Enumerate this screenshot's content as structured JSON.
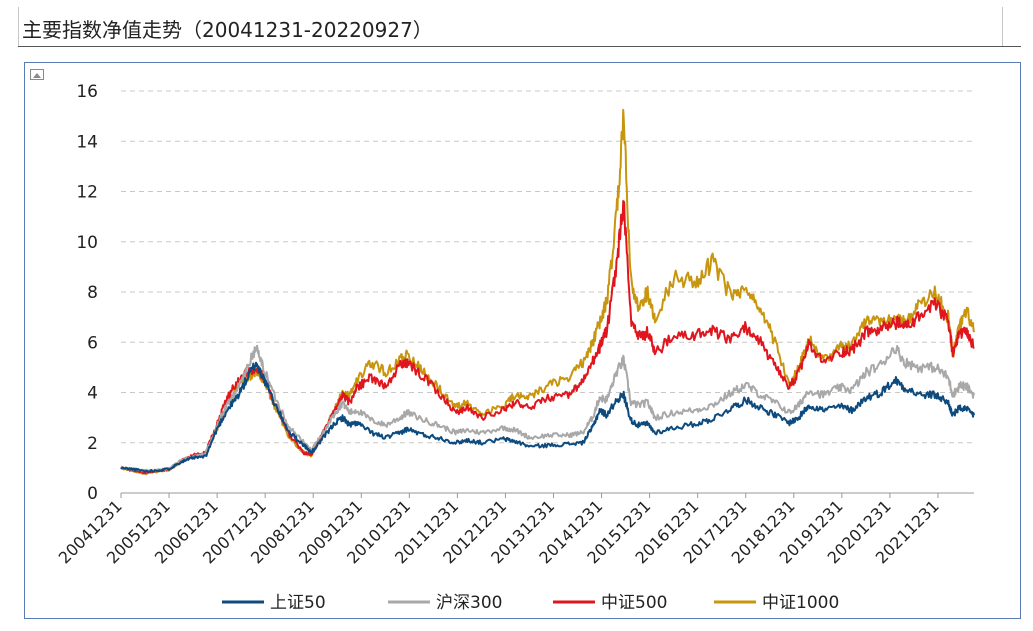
{
  "header": {
    "title": "主要指数净值走势（20041231-20220927）"
  },
  "chart_data": {
    "type": "line",
    "title": "主要指数净值走势（20041231-20220927）",
    "xlabel": "",
    "ylabel": "",
    "ylim": [
      0,
      16
    ],
    "yticks": [
      "0",
      "2",
      "4",
      "6",
      "8",
      "10",
      "12",
      "14",
      "16"
    ],
    "x_tick_labels": [
      "20041231",
      "20051231",
      "20061231",
      "20071231",
      "20081231",
      "20091231",
      "20101231",
      "20111231",
      "20121231",
      "20131231",
      "20141231",
      "20151231",
      "20161231",
      "20171231",
      "20181231",
      "20191231",
      "20201231",
      "20211231"
    ],
    "grid": "horizontal dashed",
    "legend_position": "bottom",
    "colors": {
      "上证50": "#0d4a7e",
      "沪深300": "#a8a8a8",
      "中证500": "#e0161f",
      "中证1000": "#c8960e"
    },
    "series": [
      {
        "name": "上证50",
        "x": [
          2004.99,
          2005.25,
          2005.5,
          2005.75,
          2006.0,
          2006.25,
          2006.5,
          2006.75,
          2007.0,
          2007.2,
          2007.4,
          2007.6,
          2007.8,
          2007.95,
          2008.2,
          2008.5,
          2008.8,
          2008.95,
          2009.2,
          2009.45,
          2009.6,
          2009.75,
          2009.9,
          2010.2,
          2010.5,
          2010.8,
          2010.95,
          2011.3,
          2011.6,
          2011.95,
          2012.2,
          2012.5,
          2012.95,
          2013.2,
          2013.5,
          2013.9,
          2014.3,
          2014.6,
          2014.8,
          2014.95,
          2015.1,
          2015.3,
          2015.45,
          2015.6,
          2015.75,
          2015.95,
          2016.1,
          2016.5,
          2016.95,
          2017.3,
          2017.7,
          2018.0,
          2018.3,
          2018.6,
          2018.9,
          2019.1,
          2019.3,
          2019.6,
          2019.95,
          2020.2,
          2020.5,
          2020.8,
          2021.1,
          2021.3,
          2021.6,
          2021.95,
          2022.2,
          2022.3,
          2022.45,
          2022.6,
          2022.74
        ],
        "values": [
          1.0,
          0.95,
          0.87,
          0.9,
          0.97,
          1.25,
          1.4,
          1.45,
          2.6,
          3.3,
          3.8,
          4.5,
          5.2,
          4.6,
          3.5,
          2.4,
          1.9,
          1.6,
          2.2,
          2.8,
          3.0,
          2.7,
          2.8,
          2.4,
          2.2,
          2.4,
          2.55,
          2.3,
          2.2,
          2.0,
          2.1,
          2.0,
          2.15,
          2.05,
          1.85,
          1.9,
          1.95,
          2.0,
          2.6,
          3.3,
          3.1,
          3.7,
          3.9,
          2.9,
          2.7,
          2.75,
          2.4,
          2.6,
          2.75,
          2.95,
          3.4,
          3.7,
          3.4,
          3.1,
          2.8,
          3.0,
          3.5,
          3.3,
          3.45,
          3.3,
          3.8,
          4.0,
          4.5,
          4.2,
          3.9,
          3.9,
          3.6,
          3.1,
          3.4,
          3.3,
          3.1
        ]
      },
      {
        "name": "沪深300",
        "x": [
          2004.99,
          2005.25,
          2005.5,
          2005.75,
          2006.0,
          2006.25,
          2006.5,
          2006.75,
          2007.0,
          2007.2,
          2007.4,
          2007.6,
          2007.8,
          2007.95,
          2008.2,
          2008.5,
          2008.8,
          2008.95,
          2009.2,
          2009.45,
          2009.6,
          2009.75,
          2009.9,
          2010.2,
          2010.5,
          2010.8,
          2010.95,
          2011.3,
          2011.6,
          2011.95,
          2012.2,
          2012.5,
          2012.95,
          2013.2,
          2013.5,
          2013.9,
          2014.3,
          2014.6,
          2014.8,
          2014.95,
          2015.1,
          2015.3,
          2015.45,
          2015.6,
          2015.75,
          2015.95,
          2016.1,
          2016.5,
          2016.95,
          2017.3,
          2017.7,
          2018.0,
          2018.3,
          2018.6,
          2018.9,
          2019.1,
          2019.3,
          2019.6,
          2019.95,
          2020.2,
          2020.5,
          2020.8,
          2021.1,
          2021.3,
          2021.6,
          2021.95,
          2022.2,
          2022.3,
          2022.45,
          2022.6,
          2022.74
        ],
        "values": [
          1.0,
          0.95,
          0.88,
          0.9,
          0.98,
          1.3,
          1.45,
          1.55,
          2.7,
          3.5,
          4.1,
          4.9,
          5.8,
          5.0,
          3.8,
          2.6,
          2.0,
          1.7,
          2.4,
          3.2,
          3.6,
          3.2,
          3.3,
          2.9,
          2.7,
          3.0,
          3.2,
          2.9,
          2.7,
          2.4,
          2.5,
          2.4,
          2.6,
          2.5,
          2.2,
          2.3,
          2.3,
          2.4,
          3.0,
          3.8,
          3.7,
          4.8,
          5.3,
          3.6,
          3.5,
          3.6,
          3.0,
          3.2,
          3.3,
          3.5,
          4.0,
          4.3,
          3.9,
          3.6,
          3.2,
          3.5,
          4.1,
          3.9,
          4.2,
          4.1,
          4.8,
          5.1,
          5.8,
          5.2,
          5.0,
          5.0,
          4.6,
          3.9,
          4.3,
          4.2,
          3.9
        ]
      },
      {
        "name": "中证500",
        "x": [
          2004.99,
          2005.25,
          2005.5,
          2005.75,
          2006.0,
          2006.25,
          2006.5,
          2006.75,
          2007.0,
          2007.2,
          2007.4,
          2007.6,
          2007.8,
          2007.95,
          2008.2,
          2008.5,
          2008.8,
          2008.95,
          2009.2,
          2009.45,
          2009.6,
          2009.75,
          2009.9,
          2010.2,
          2010.5,
          2010.8,
          2010.95,
          2011.3,
          2011.6,
          2011.95,
          2012.2,
          2012.5,
          2012.95,
          2013.2,
          2013.5,
          2013.9,
          2014.3,
          2014.6,
          2014.8,
          2014.95,
          2015.1,
          2015.3,
          2015.45,
          2015.6,
          2015.75,
          2015.95,
          2016.1,
          2016.5,
          2016.95,
          2017.3,
          2017.7,
          2018.0,
          2018.3,
          2018.6,
          2018.9,
          2019.1,
          2019.3,
          2019.6,
          2019.95,
          2020.2,
          2020.5,
          2020.8,
          2021.1,
          2021.3,
          2021.6,
          2021.95,
          2022.2,
          2022.3,
          2022.45,
          2022.6,
          2022.74
        ],
        "values": [
          1.0,
          0.9,
          0.8,
          0.88,
          0.95,
          1.3,
          1.5,
          1.6,
          2.8,
          3.8,
          4.4,
          4.8,
          5.0,
          4.6,
          3.5,
          2.3,
          1.6,
          1.5,
          2.4,
          3.3,
          3.9,
          3.6,
          4.2,
          4.6,
          4.2,
          5.1,
          5.2,
          4.6,
          4.0,
          3.2,
          3.4,
          3.0,
          3.3,
          3.6,
          3.4,
          3.8,
          3.9,
          4.4,
          5.2,
          5.8,
          6.5,
          9.0,
          11.6,
          6.8,
          6.2,
          6.4,
          5.6,
          6.2,
          6.3,
          6.4,
          6.1,
          6.6,
          6.0,
          5.0,
          4.2,
          4.8,
          5.9,
          5.2,
          5.6,
          5.7,
          6.4,
          6.5,
          6.8,
          6.6,
          7.0,
          7.5,
          6.8,
          5.6,
          6.4,
          6.3,
          5.8
        ]
      },
      {
        "name": "中证1000",
        "x": [
          2004.99,
          2005.25,
          2005.5,
          2005.75,
          2006.0,
          2006.25,
          2006.5,
          2006.75,
          2007.0,
          2007.2,
          2007.4,
          2007.6,
          2007.8,
          2007.95,
          2008.2,
          2008.5,
          2008.8,
          2008.95,
          2009.2,
          2009.45,
          2009.6,
          2009.75,
          2009.9,
          2010.2,
          2010.5,
          2010.8,
          2010.95,
          2011.3,
          2011.6,
          2011.95,
          2012.2,
          2012.5,
          2012.95,
          2013.2,
          2013.5,
          2013.9,
          2014.3,
          2014.6,
          2014.8,
          2014.95,
          2015.1,
          2015.3,
          2015.45,
          2015.6,
          2015.75,
          2015.95,
          2016.1,
          2016.5,
          2016.95,
          2017.3,
          2017.7,
          2018.0,
          2018.3,
          2018.6,
          2018.9,
          2019.1,
          2019.3,
          2019.6,
          2019.95,
          2020.2,
          2020.5,
          2020.8,
          2021.1,
          2021.3,
          2021.6,
          2021.95,
          2022.2,
          2022.3,
          2022.45,
          2022.6,
          2022.74
        ],
        "values": [
          1.0,
          0.88,
          0.78,
          0.86,
          0.93,
          1.25,
          1.45,
          1.55,
          2.6,
          3.6,
          4.2,
          4.6,
          4.8,
          4.5,
          3.4,
          2.2,
          1.6,
          1.5,
          2.4,
          3.4,
          4.1,
          3.9,
          4.5,
          5.2,
          4.8,
          5.3,
          5.5,
          4.8,
          4.2,
          3.4,
          3.6,
          3.1,
          3.5,
          3.9,
          3.8,
          4.3,
          4.6,
          5.2,
          6.0,
          6.8,
          7.6,
          11.0,
          15.0,
          8.4,
          7.4,
          8.0,
          7.0,
          8.6,
          8.4,
          9.2,
          7.8,
          8.0,
          7.3,
          6.0,
          4.3,
          5.0,
          6.2,
          5.3,
          5.8,
          5.9,
          7.0,
          6.7,
          6.9,
          6.8,
          7.5,
          8.0,
          7.0,
          5.5,
          6.7,
          7.2,
          6.4
        ]
      }
    ]
  }
}
